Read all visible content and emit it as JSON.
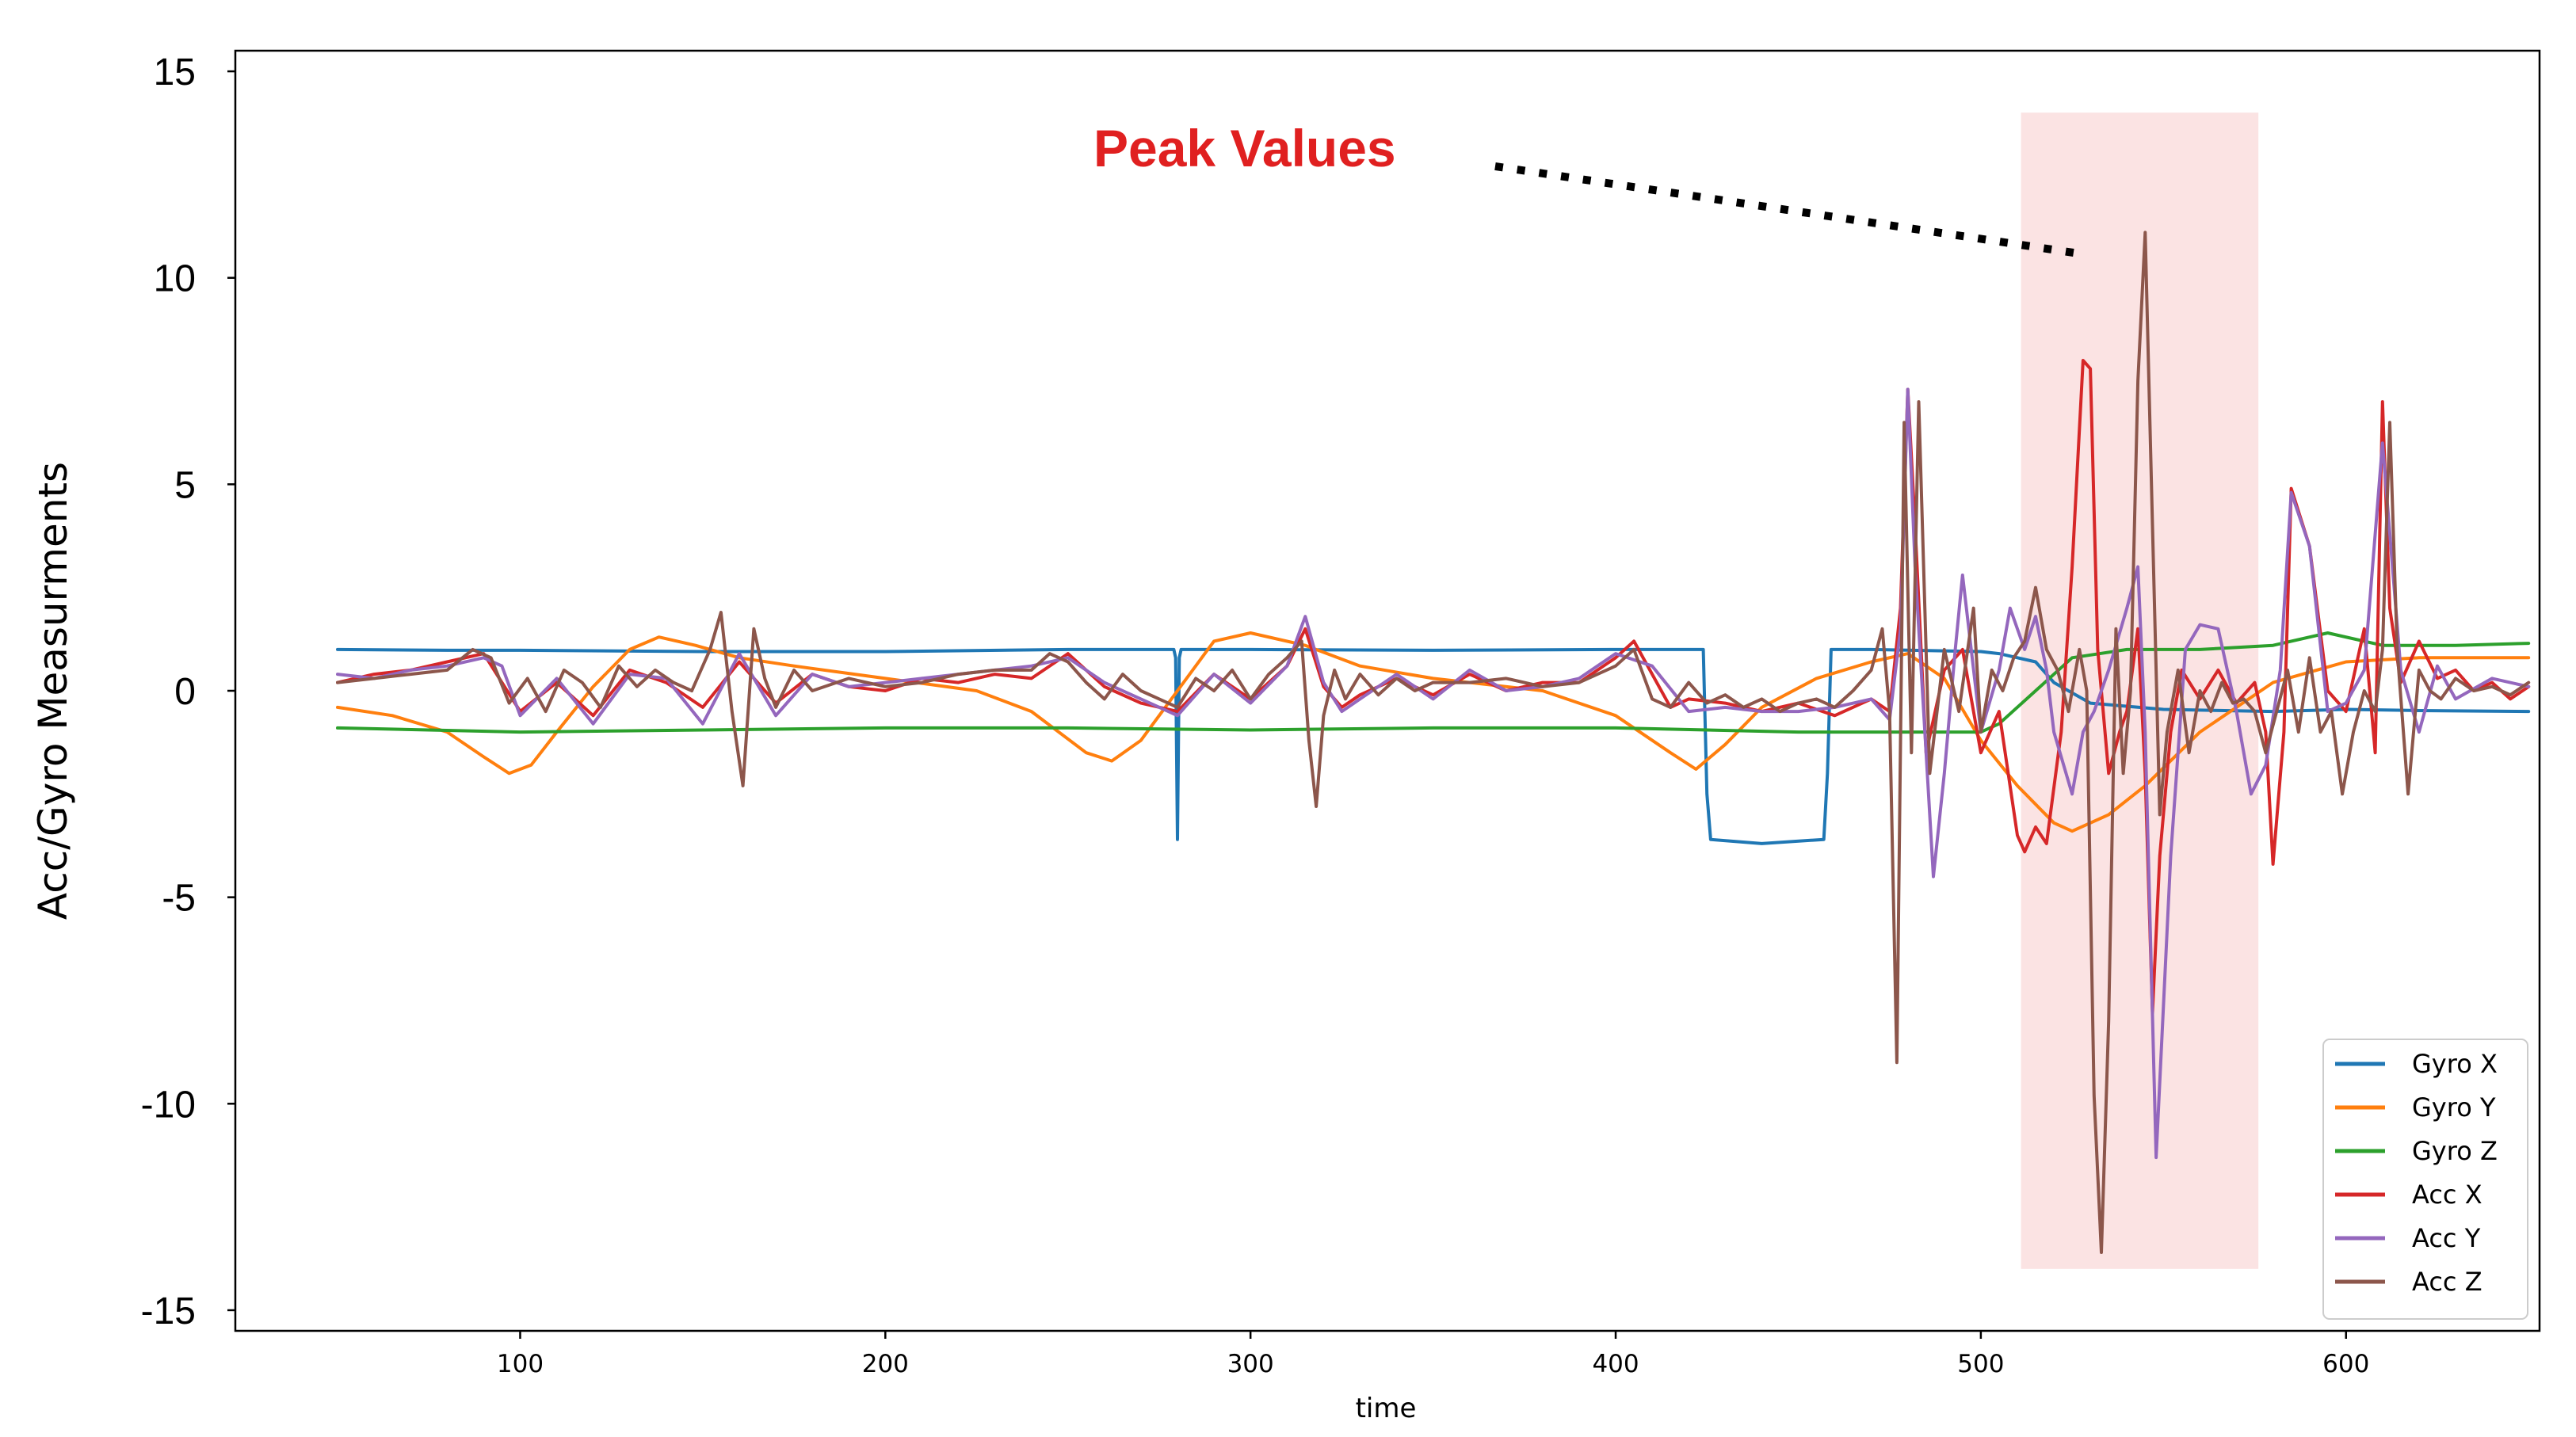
{
  "chart_data": {
    "type": "line",
    "xlabel": "time",
    "ylabel": "Acc/Gyro Measurments",
    "xlim": [
      22,
      653
    ],
    "ylim": [
      -15.5,
      15.5
    ],
    "xticks": [
      100,
      200,
      300,
      400,
      500,
      600
    ],
    "xtick_labels": [
      "100",
      "200",
      "300",
      "400",
      "500",
      "600"
    ],
    "yticks": [
      15,
      10,
      5,
      0,
      -5,
      -10,
      -15
    ],
    "ytick_labels": [
      "15",
      "10",
      "5",
      "0",
      "-5",
      "-10",
      "-15"
    ],
    "legend_position": "lower-right",
    "highlight_region": {
      "x": [
        511,
        576
      ],
      "y": [
        -14,
        14
      ],
      "color": "#f8c8c8"
    },
    "annotation": {
      "text": "Peak Values",
      "color": "#e02020",
      "text_anchor": {
        "x": 257,
        "y": 12.7
      },
      "line": {
        "from": {
          "x": 367,
          "y": 12.7
        },
        "to": {
          "x": 526,
          "y": 10.6
        }
      }
    },
    "series": [
      {
        "name": "Gyro X",
        "color": "#1f77b4",
        "x": [
          50,
          80,
          100,
          150,
          200,
          250,
          279,
          279.5,
          280,
          280.5,
          281,
          300,
          350,
          400,
          424,
          425,
          426,
          440,
          457,
          458,
          459,
          470,
          500,
          505,
          515,
          520,
          530,
          550,
          580,
          600,
          620,
          650
        ],
        "y": [
          1.0,
          0.98,
          0.98,
          0.95,
          0.95,
          1.0,
          1.0,
          0.8,
          -3.6,
          0.8,
          1.0,
          1.0,
          0.98,
          1.0,
          1.0,
          -2.5,
          -3.6,
          -3.7,
          -3.6,
          -2.0,
          1.0,
          1.0,
          0.95,
          0.9,
          0.7,
          0.2,
          -0.3,
          -0.45,
          -0.5,
          -0.45,
          -0.48,
          -0.5
        ]
      },
      {
        "name": "Gyro Y",
        "color": "#ff7f0e",
        "x": [
          50,
          65,
          80,
          90,
          97,
          103,
          110,
          120,
          130,
          138,
          148,
          160,
          175,
          200,
          225,
          240,
          255,
          262,
          270,
          280,
          290,
          300,
          315,
          330,
          350,
          380,
          400,
          415,
          422,
          430,
          440,
          455,
          470,
          480,
          490,
          500,
          510,
          520,
          525,
          535,
          545,
          560,
          580,
          600,
          620,
          650
        ],
        "y": [
          -0.4,
          -0.6,
          -1.0,
          -1.6,
          -2.0,
          -1.8,
          -1.0,
          0.1,
          1.0,
          1.3,
          1.1,
          0.8,
          0.6,
          0.3,
          0.0,
          -0.5,
          -1.5,
          -1.7,
          -1.2,
          0.0,
          1.2,
          1.4,
          1.1,
          0.6,
          0.3,
          0.0,
          -0.6,
          -1.5,
          -1.9,
          -1.3,
          -0.4,
          0.3,
          0.7,
          0.9,
          0.3,
          -1.2,
          -2.3,
          -3.2,
          -3.4,
          -3.0,
          -2.3,
          -1.0,
          0.2,
          0.7,
          0.8,
          0.8
        ]
      },
      {
        "name": "Gyro Z",
        "color": "#2ca02c",
        "x": [
          50,
          100,
          150,
          200,
          250,
          300,
          350,
          400,
          450,
          480,
          500,
          505,
          515,
          525,
          540,
          560,
          580,
          595,
          610,
          630,
          650
        ],
        "y": [
          -0.9,
          -1.0,
          -0.95,
          -0.9,
          -0.9,
          -0.95,
          -0.9,
          -0.9,
          -1.0,
          -1.0,
          -1.0,
          -0.8,
          0.0,
          0.8,
          1.0,
          1.0,
          1.1,
          1.4,
          1.1,
          1.1,
          1.15
        ]
      },
      {
        "name": "Acc X",
        "color": "#d62728",
        "x": [
          50,
          60,
          70,
          80,
          90,
          100,
          110,
          120,
          130,
          140,
          150,
          160,
          170,
          180,
          190,
          200,
          210,
          220,
          230,
          240,
          250,
          260,
          270,
          280,
          290,
          300,
          310,
          315,
          320,
          325,
          330,
          340,
          350,
          360,
          370,
          380,
          390,
          400,
          405,
          410,
          415,
          420,
          430,
          440,
          450,
          460,
          470,
          475,
          478,
          480,
          482,
          485,
          490,
          495,
          500,
          505,
          510,
          512,
          515,
          518,
          522,
          525,
          528,
          530,
          532,
          535,
          538,
          540,
          543,
          545,
          547,
          549,
          552,
          555,
          560,
          565,
          570,
          575,
          578,
          580,
          583,
          585,
          590,
          595,
          600,
          605,
          608,
          610,
          612,
          615,
          620,
          625,
          630,
          635,
          640,
          645,
          650
        ],
        "y": [
          0.2,
          0.4,
          0.5,
          0.7,
          0.9,
          -0.5,
          0.2,
          -0.6,
          0.5,
          0.2,
          -0.4,
          0.7,
          -0.3,
          0.4,
          0.1,
          0.0,
          0.3,
          0.2,
          0.4,
          0.3,
          0.9,
          0.1,
          -0.3,
          -0.5,
          0.4,
          -0.2,
          0.6,
          1.5,
          0.1,
          -0.4,
          -0.1,
          0.3,
          -0.1,
          0.4,
          0.0,
          0.2,
          0.2,
          0.8,
          1.2,
          0.4,
          -0.4,
          -0.2,
          -0.3,
          -0.5,
          -0.3,
          -0.6,
          -0.2,
          -0.5,
          2.0,
          7.3,
          4.0,
          -1.5,
          0.5,
          1.0,
          -1.5,
          -0.5,
          -3.5,
          -3.9,
          -3.3,
          -3.7,
          -1.0,
          3.0,
          8.0,
          7.8,
          1.0,
          -2.0,
          -1.0,
          -0.5,
          1.5,
          -2.0,
          -7.8,
          -4.0,
          -1.0,
          0.5,
          -0.2,
          0.5,
          -0.3,
          0.2,
          -1.0,
          -4.2,
          -1.0,
          4.9,
          3.5,
          0.0,
          -0.5,
          1.5,
          -1.5,
          7.0,
          2.0,
          0.2,
          1.2,
          0.3,
          0.5,
          0.0,
          0.2,
          -0.2,
          0.1
        ]
      },
      {
        "name": "Acc Y",
        "color": "#9467bd",
        "x": [
          50,
          60,
          70,
          80,
          90,
          95,
          100,
          110,
          120,
          130,
          140,
          150,
          160,
          170,
          180,
          190,
          200,
          210,
          220,
          230,
          240,
          250,
          260,
          270,
          280,
          290,
          300,
          310,
          315,
          320,
          325,
          330,
          340,
          350,
          360,
          370,
          380,
          390,
          400,
          410,
          420,
          430,
          440,
          450,
          460,
          470,
          475,
          478,
          480,
          482,
          485,
          487,
          490,
          493,
          495,
          500,
          505,
          508,
          512,
          515,
          518,
          520,
          525,
          528,
          531,
          535,
          540,
          543,
          545,
          548,
          552,
          556,
          560,
          565,
          570,
          574,
          578,
          582,
          585,
          590,
          595,
          600,
          605,
          610,
          615,
          620,
          625,
          630,
          640,
          650
        ],
        "y": [
          0.4,
          0.3,
          0.5,
          0.6,
          0.8,
          0.6,
          -0.6,
          0.3,
          -0.8,
          0.4,
          0.3,
          -0.8,
          0.9,
          -0.6,
          0.4,
          0.1,
          0.2,
          0.3,
          0.4,
          0.5,
          0.6,
          0.8,
          0.2,
          -0.2,
          -0.6,
          0.4,
          -0.3,
          0.6,
          1.8,
          0.2,
          -0.5,
          -0.2,
          0.4,
          -0.2,
          0.5,
          0.0,
          0.1,
          0.3,
          0.9,
          0.6,
          -0.5,
          -0.4,
          -0.5,
          -0.5,
          -0.4,
          -0.2,
          -0.7,
          1.5,
          7.3,
          3.0,
          -1.5,
          -4.5,
          -2.0,
          1.0,
          2.8,
          -1.0,
          0.5,
          2.0,
          1.0,
          1.8,
          0.5,
          -1.0,
          -2.5,
          -1.0,
          -0.5,
          0.5,
          2.0,
          3.0,
          -1.0,
          -11.3,
          -4.0,
          1.0,
          1.6,
          1.5,
          -0.5,
          -2.5,
          -1.8,
          0.5,
          4.8,
          3.5,
          -0.5,
          -0.3,
          0.5,
          6.0,
          0.5,
          -1.0,
          0.6,
          -0.2,
          0.3,
          0.1
        ]
      },
      {
        "name": "Acc Z",
        "color": "#8c564b",
        "x": [
          50,
          60,
          70,
          80,
          87,
          92,
          97,
          102,
          107,
          112,
          117,
          122,
          127,
          132,
          137,
          142,
          147,
          152,
          155,
          158,
          161,
          164,
          167,
          170,
          175,
          180,
          190,
          200,
          210,
          220,
          230,
          240,
          245,
          250,
          255,
          260,
          265,
          270,
          275,
          280,
          285,
          290,
          295,
          300,
          305,
          310,
          314,
          316,
          318,
          320,
          323,
          326,
          330,
          335,
          340,
          345,
          350,
          360,
          370,
          380,
          390,
          400,
          405,
          410,
          415,
          420,
          425,
          430,
          435,
          440,
          445,
          450,
          455,
          460,
          465,
          470,
          473,
          475,
          477,
          479,
          481,
          483,
          486,
          490,
          494,
          498,
          500,
          503,
          506,
          509,
          512,
          515,
          518,
          521,
          524,
          527,
          529,
          531,
          533,
          535,
          537,
          539,
          541,
          543,
          545,
          547,
          549,
          551,
          554,
          557,
          560,
          563,
          566,
          569,
          572,
          575,
          578,
          581,
          584,
          587,
          590,
          593,
          596,
          599,
          602,
          605,
          608,
          610,
          612,
          614,
          617,
          620,
          623,
          626,
          630,
          635,
          640,
          645,
          650
        ],
        "y": [
          0.2,
          0.3,
          0.4,
          0.5,
          1.0,
          0.8,
          -0.3,
          0.3,
          -0.5,
          0.5,
          0.2,
          -0.4,
          0.6,
          0.1,
          0.5,
          0.2,
          0.0,
          1.0,
          1.9,
          -0.5,
          -2.3,
          1.5,
          0.3,
          -0.4,
          0.5,
          0.0,
          0.3,
          0.1,
          0.2,
          0.4,
          0.5,
          0.5,
          0.9,
          0.7,
          0.2,
          -0.2,
          0.4,
          0.0,
          -0.2,
          -0.4,
          0.3,
          0.0,
          0.5,
          -0.2,
          0.4,
          0.8,
          1.2,
          -1.2,
          -2.8,
          -0.6,
          0.5,
          -0.2,
          0.4,
          -0.1,
          0.3,
          0.0,
          0.2,
          0.2,
          0.3,
          0.1,
          0.2,
          0.6,
          1.0,
          -0.2,
          -0.4,
          0.2,
          -0.3,
          -0.1,
          -0.4,
          -0.2,
          -0.5,
          -0.3,
          -0.2,
          -0.4,
          0.0,
          0.5,
          1.5,
          -0.5,
          -9.0,
          6.5,
          -1.5,
          7.0,
          -2.0,
          1.0,
          -0.5,
          2.0,
          -1.0,
          0.5,
          0.0,
          0.8,
          1.2,
          2.5,
          1.0,
          0.5,
          -0.5,
          1.0,
          0.0,
          -9.8,
          -13.6,
          -8.0,
          1.5,
          -2.0,
          0.0,
          7.5,
          11.1,
          4.0,
          -3.0,
          -1.0,
          0.5,
          -1.5,
          0.0,
          -0.5,
          0.2,
          -0.3,
          -0.2,
          -0.5,
          -1.5,
          -0.5,
          0.5,
          -1.0,
          0.8,
          -1.0,
          -0.5,
          -2.5,
          -1.0,
          0.0,
          -0.5,
          1.0,
          6.5,
          1.0,
          -2.5,
          0.5,
          0.0,
          -0.2,
          0.3,
          0.0,
          0.1,
          -0.1,
          0.2
        ]
      }
    ]
  }
}
